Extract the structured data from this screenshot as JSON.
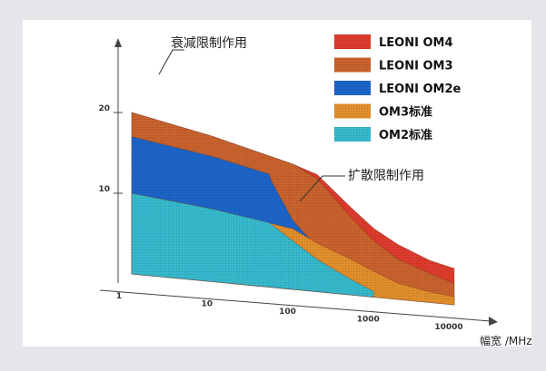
{
  "chart_data": {
    "type": "area",
    "xscale": "log",
    "xlabel": "幅宽 /MHz",
    "ylabel": "",
    "x_ticks": [
      "1",
      "10",
      "100",
      "1000",
      "10000"
    ],
    "y_ticks": [
      "10",
      "20"
    ],
    "xlim": [
      1,
      10000
    ],
    "ylim": [
      0,
      22
    ],
    "grid": false,
    "legend_position": "top-right",
    "series": [
      {
        "name": "LEONI OM4",
        "color": "#dd3b2d",
        "x": [
          1,
          10,
          100,
          200,
          500,
          1000,
          2000,
          5000,
          10000
        ],
        "y": [
          20,
          18,
          15.5,
          14.5,
          11,
          8.5,
          6.8,
          5.2,
          4.5
        ]
      },
      {
        "name": "LEONI OM3",
        "color": "#c8622d",
        "x": [
          1,
          10,
          100,
          200,
          500,
          1000,
          2000,
          5000,
          10000
        ],
        "y": [
          20,
          18,
          15.5,
          14,
          9.8,
          7,
          5,
          3.6,
          2.6
        ]
      },
      {
        "name": "LEONI OM2e",
        "color": "#1c64c8",
        "x": [
          1,
          10,
          50,
          55,
          100,
          200,
          500,
          1000
        ],
        "y": [
          17,
          15.5,
          14,
          13,
          8.5,
          5.5,
          3.5,
          2.2
        ]
      },
      {
        "name": "OM3标准",
        "color": "#e08e2c",
        "x": [
          1,
          10,
          100,
          200,
          500,
          1000,
          2000,
          5000,
          10000
        ],
        "y": [
          10,
          9,
          7.5,
          6,
          4.5,
          3.2,
          2,
          1.3,
          1
        ]
      },
      {
        "name": "OM2标准",
        "color": "#36b8cc",
        "x": [
          1,
          10,
          50,
          100,
          200,
          500,
          1000
        ],
        "y": [
          10,
          9,
          8,
          6,
          4,
          2,
          0.7
        ]
      }
    ],
    "annotations": [
      {
        "text": "衰减限制作用"
      },
      {
        "text": "扩散限制作用"
      }
    ]
  }
}
